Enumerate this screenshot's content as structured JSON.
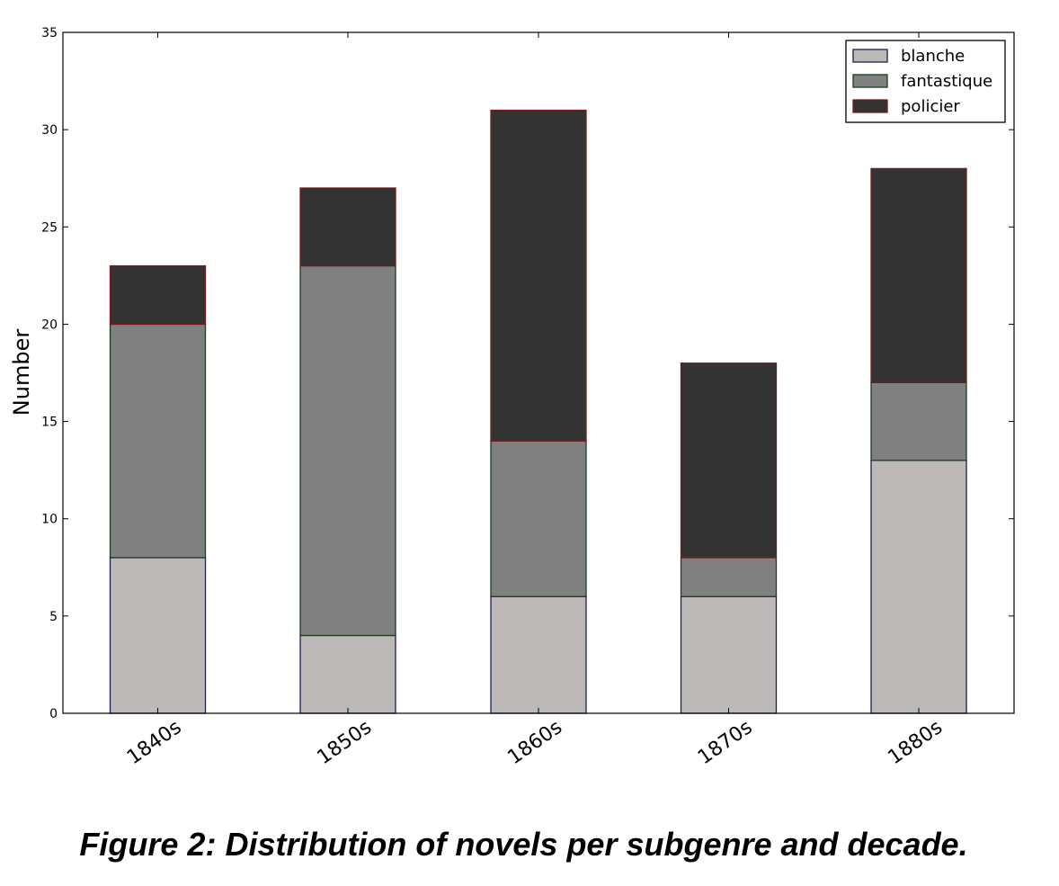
{
  "chart_data": {
    "type": "bar",
    "stacked": true,
    "categories": [
      "1840s",
      "1850s",
      "1860s",
      "1870s",
      "1880s"
    ],
    "series": [
      {
        "name": "blanche",
        "values": [
          8,
          4,
          6,
          6,
          13
        ],
        "color": "#bdb9b9",
        "edge": "#1c1c5e"
      },
      {
        "name": "fantastique",
        "values": [
          12,
          19,
          8,
          2,
          4
        ],
        "color": "#808080",
        "edge": "#1f3d1f"
      },
      {
        "name": "policier",
        "values": [
          3,
          4,
          17,
          10,
          11
        ],
        "color": "#333333",
        "edge": "#7a1a1a"
      }
    ],
    "ylabel": "Number",
    "xlabel": "",
    "ylim": [
      0,
      35
    ],
    "yticks": [
      "0",
      "5",
      "10",
      "15",
      "20",
      "25",
      "30",
      "35"
    ],
    "legend_position": "top-right",
    "grid": false
  },
  "caption": "Figure 2: Distribution of novels per subgenre and decade."
}
